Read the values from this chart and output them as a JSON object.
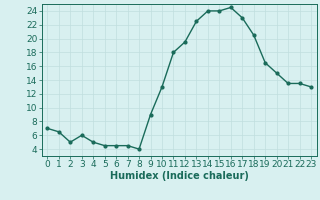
{
  "x": [
    0,
    1,
    2,
    3,
    4,
    5,
    6,
    7,
    8,
    9,
    10,
    11,
    12,
    13,
    14,
    15,
    16,
    17,
    18,
    19,
    20,
    21,
    22,
    23
  ],
  "y": [
    7,
    6.5,
    5,
    6,
    5,
    4.5,
    4.5,
    4.5,
    4,
    9,
    13,
    18,
    19.5,
    22.5,
    24,
    24,
    24.5,
    23,
    20.5,
    16.5,
    15,
    13.5,
    13.5,
    13
  ],
  "line_color": "#1a6b5a",
  "marker": "o",
  "marker_size": 2.0,
  "line_width": 1.0,
  "xlabel": "Humidex (Indice chaleur)",
  "xlim": [
    -0.5,
    23.5
  ],
  "ylim": [
    3,
    25
  ],
  "yticks": [
    4,
    6,
    8,
    10,
    12,
    14,
    16,
    18,
    20,
    22,
    24
  ],
  "xticks": [
    0,
    1,
    2,
    3,
    4,
    5,
    6,
    7,
    8,
    9,
    10,
    11,
    12,
    13,
    14,
    15,
    16,
    17,
    18,
    19,
    20,
    21,
    22,
    23
  ],
  "bg_color": "#d8f0f0",
  "grid_color": "#c0dede",
  "tick_color": "#1a6b5a",
  "label_color": "#1a6b5a",
  "font_size": 6.5
}
